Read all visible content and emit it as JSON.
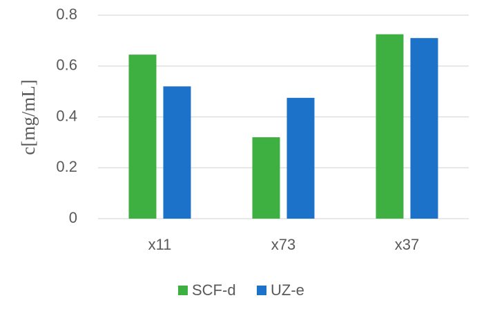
{
  "chart_data": {
    "type": "bar",
    "y_label": "c[mg/mL]",
    "categories": [
      "x11",
      "x73",
      "x37"
    ],
    "series": [
      {
        "name": "SCF-d",
        "color": "#3eb041",
        "values": [
          0.645,
          0.32,
          0.725
        ]
      },
      {
        "name": "UZ-e",
        "color": "#1c72c8",
        "values": [
          0.52,
          0.475,
          0.71
        ]
      }
    ],
    "ylim": [
      0,
      0.8
    ],
    "yticks": [
      0,
      0.2,
      0.4,
      0.6,
      0.8
    ],
    "grid": true,
    "legend": "bottom"
  }
}
